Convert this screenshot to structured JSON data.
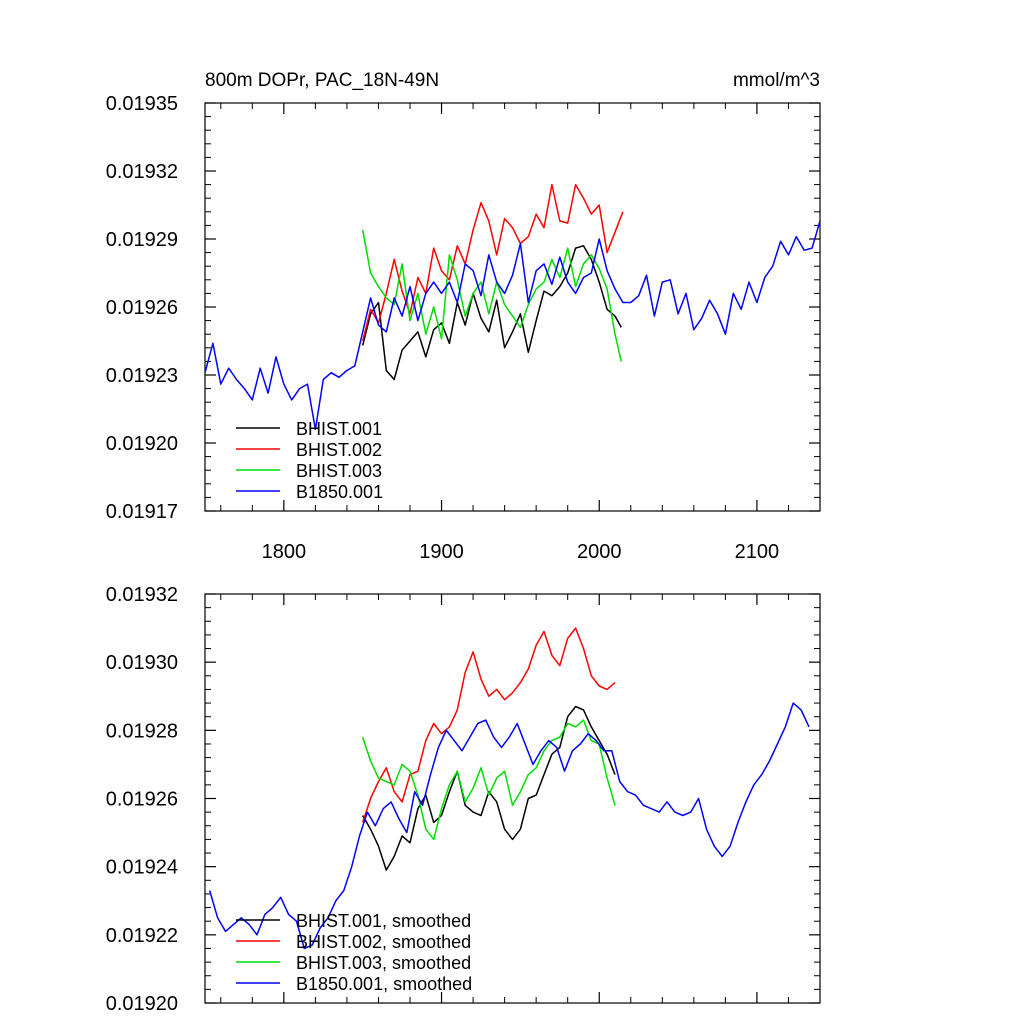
{
  "chart_data": [
    {
      "type": "line",
      "title": "800m DOPr, PAC_18N-49N",
      "units": "mmol/m^3",
      "xlim": [
        1750,
        2140
      ],
      "ylim": [
        0.01917,
        0.01935
      ],
      "xticks": [
        1800,
        1900,
        2000,
        2100
      ],
      "xtick_labels": [
        "1800",
        "1900",
        "2000",
        "2100"
      ],
      "yticks": [
        0.01917,
        0.0192,
        0.01923,
        0.01926,
        0.01929,
        0.01932,
        0.01935
      ],
      "ytick_labels": [
        "0.01917",
        "0.01920",
        "0.01923",
        "0.01926",
        "0.01929",
        "0.01932",
        "0.01935"
      ],
      "legend_position": "bottom-left",
      "series": [
        {
          "name": "BHIST.001",
          "color": "#000000",
          "x": [
            1850,
            1855,
            1860,
            1865,
            1870,
            1875,
            1880,
            1885,
            1890,
            1895,
            1900,
            1905,
            1910,
            1915,
            1920,
            1925,
            1930,
            1935,
            1940,
            1945,
            1950,
            1955,
            1960,
            1965,
            1970,
            1975,
            1980,
            1985,
            1990,
            1995,
            2000,
            2005,
            2010,
            2014
          ],
          "y": [
            0.019243,
            0.019257,
            0.019262,
            0.019232,
            0.019228,
            0.019241,
            0.019245,
            0.019249,
            0.019238,
            0.01925,
            0.019253,
            0.019244,
            0.019262,
            0.019252,
            0.019266,
            0.019255,
            0.019249,
            0.019263,
            0.019242,
            0.019249,
            0.019257,
            0.01924,
            0.019254,
            0.019267,
            0.019265,
            0.019269,
            0.019275,
            0.019286,
            0.019287,
            0.019281,
            0.019271,
            0.019259,
            0.019256,
            0.019251
          ]
        },
        {
          "name": "BHIST.002",
          "color": "#ff0000",
          "x": [
            1850,
            1855,
            1860,
            1865,
            1870,
            1875,
            1880,
            1885,
            1890,
            1895,
            1900,
            1905,
            1910,
            1915,
            1920,
            1925,
            1930,
            1935,
            1940,
            1945,
            1950,
            1955,
            1960,
            1965,
            1970,
            1975,
            1980,
            1985,
            1990,
            1995,
            2000,
            2005,
            2010,
            2015
          ],
          "y": [
            0.019245,
            0.019259,
            0.019253,
            0.019266,
            0.019281,
            0.019267,
            0.019257,
            0.019273,
            0.019266,
            0.019286,
            0.019276,
            0.019272,
            0.019287,
            0.019279,
            0.019294,
            0.019306,
            0.019298,
            0.019283,
            0.019299,
            0.019295,
            0.019288,
            0.019291,
            0.019301,
            0.019295,
            0.019314,
            0.019298,
            0.019297,
            0.019314,
            0.019308,
            0.019301,
            0.019305,
            0.019284,
            0.019293,
            0.019302
          ]
        },
        {
          "name": "BHIST.003",
          "color": "#00dd00",
          "x": [
            1850,
            1855,
            1860,
            1865,
            1870,
            1875,
            1880,
            1885,
            1890,
            1895,
            1900,
            1905,
            1910,
            1915,
            1920,
            1925,
            1930,
            1935,
            1940,
            1945,
            1950,
            1955,
            1960,
            1965,
            1970,
            1975,
            1980,
            1985,
            1990,
            1995,
            2000,
            2005,
            2010,
            2014
          ],
          "y": [
            0.019294,
            0.019275,
            0.019269,
            0.019264,
            0.019261,
            0.019279,
            0.019254,
            0.019266,
            0.019248,
            0.01926,
            0.019246,
            0.019283,
            0.019272,
            0.019256,
            0.019266,
            0.019271,
            0.019257,
            0.019271,
            0.019261,
            0.019256,
            0.019251,
            0.019261,
            0.019268,
            0.019271,
            0.019281,
            0.019273,
            0.019286,
            0.019269,
            0.019279,
            0.019283,
            0.019277,
            0.019268,
            0.019248,
            0.019236
          ]
        },
        {
          "name": "B1850.001",
          "color": "#0000ff",
          "x": [
            1750,
            1755,
            1760,
            1765,
            1770,
            1775,
            1780,
            1785,
            1790,
            1795,
            1800,
            1805,
            1810,
            1815,
            1820,
            1825,
            1830,
            1835,
            1840,
            1845,
            1850,
            1855,
            1860,
            1865,
            1870,
            1875,
            1880,
            1885,
            1890,
            1895,
            1900,
            1905,
            1910,
            1915,
            1920,
            1925,
            1930,
            1935,
            1940,
            1945,
            1950,
            1955,
            1960,
            1965,
            1970,
            1975,
            1980,
            1985,
            1990,
            1995,
            2000,
            2005,
            2010,
            2015,
            2020,
            2025,
            2030,
            2035,
            2040,
            2045,
            2050,
            2055,
            2060,
            2065,
            2070,
            2075,
            2080,
            2085,
            2090,
            2095,
            2100,
            2105,
            2110,
            2115,
            2120,
            2125,
            2130,
            2135,
            2140
          ],
          "y": [
            0.019231,
            0.019244,
            0.019226,
            0.019233,
            0.019228,
            0.019224,
            0.019219,
            0.019233,
            0.019222,
            0.019238,
            0.019226,
            0.019219,
            0.019224,
            0.019226,
            0.019206,
            0.019228,
            0.019231,
            0.019229,
            0.019232,
            0.019234,
            0.019249,
            0.019264,
            0.019252,
            0.019249,
            0.019264,
            0.019256,
            0.019269,
            0.019254,
            0.019266,
            0.019271,
            0.019266,
            0.019271,
            0.019262,
            0.019279,
            0.019276,
            0.019265,
            0.019283,
            0.019271,
            0.019266,
            0.019274,
            0.019288,
            0.019262,
            0.019276,
            0.019279,
            0.01927,
            0.019282,
            0.019271,
            0.019266,
            0.019273,
            0.019275,
            0.01929,
            0.019276,
            0.019268,
            0.019262,
            0.019262,
            0.019265,
            0.019274,
            0.019256,
            0.019271,
            0.019272,
            0.019257,
            0.019266,
            0.01925,
            0.019255,
            0.019263,
            0.019257,
            0.019248,
            0.019266,
            0.019259,
            0.019271,
            0.019262,
            0.019273,
            0.019278,
            0.019289,
            0.019283,
            0.019291,
            0.019285,
            0.019286,
            0.019298
          ]
        }
      ]
    },
    {
      "type": "line",
      "xlim": [
        1750,
        2140
      ],
      "ylim": [
        0.0192,
        0.01932
      ],
      "xticks": [
        1800,
        1900,
        2000,
        2100
      ],
      "yticks": [
        0.0192,
        0.01922,
        0.01924,
        0.01926,
        0.01928,
        0.0193,
        0.01932
      ],
      "ytick_labels": [
        "0.01920",
        "0.01922",
        "0.01924",
        "0.01926",
        "0.01928",
        "0.01930",
        "0.01932"
      ],
      "legend_position": "bottom-left",
      "series": [
        {
          "name": "BHIST.001, smoothed",
          "color": "#000000",
          "x": [
            1850,
            1855,
            1860,
            1865,
            1870,
            1875,
            1880,
            1885,
            1890,
            1895,
            1900,
            1905,
            1910,
            1915,
            1920,
            1925,
            1930,
            1935,
            1940,
            1945,
            1950,
            1955,
            1960,
            1965,
            1970,
            1975,
            1980,
            1985,
            1990,
            1995,
            2000,
            2005,
            2010
          ],
          "y": [
            0.019255,
            0.019251,
            0.019246,
            0.019239,
            0.019243,
            0.019249,
            0.019247,
            0.019257,
            0.019261,
            0.019253,
            0.019255,
            0.019262,
            0.019268,
            0.019258,
            0.019256,
            0.019255,
            0.019262,
            0.019259,
            0.019251,
            0.019248,
            0.019251,
            0.01926,
            0.019261,
            0.019267,
            0.019273,
            0.019275,
            0.019284,
            0.019287,
            0.019286,
            0.019281,
            0.019277,
            0.019273,
            0.019267
          ]
        },
        {
          "name": "BHIST.002, smoothed",
          "color": "#ff0000",
          "x": [
            1850,
            1855,
            1860,
            1865,
            1870,
            1875,
            1880,
            1885,
            1890,
            1895,
            1900,
            1905,
            1910,
            1915,
            1920,
            1925,
            1930,
            1935,
            1940,
            1945,
            1950,
            1955,
            1960,
            1965,
            1970,
            1975,
            1980,
            1985,
            1990,
            1995,
            2000,
            2005,
            2010
          ],
          "y": [
            0.019253,
            0.01926,
            0.019265,
            0.019269,
            0.019262,
            0.019259,
            0.019267,
            0.019268,
            0.019277,
            0.019282,
            0.019279,
            0.019281,
            0.019286,
            0.019297,
            0.019303,
            0.019295,
            0.01929,
            0.019292,
            0.019289,
            0.019291,
            0.019294,
            0.019298,
            0.019305,
            0.019309,
            0.019302,
            0.019299,
            0.019307,
            0.01931,
            0.019304,
            0.019296,
            0.019293,
            0.019292,
            0.019294
          ]
        },
        {
          "name": "BHIST.003, smoothed",
          "color": "#00dd00",
          "x": [
            1850,
            1855,
            1860,
            1865,
            1870,
            1875,
            1880,
            1885,
            1890,
            1895,
            1900,
            1905,
            1910,
            1915,
            1920,
            1925,
            1930,
            1935,
            1940,
            1945,
            1950,
            1955,
            1960,
            1965,
            1970,
            1975,
            1980,
            1985,
            1990,
            1995,
            2000,
            2005,
            2010
          ],
          "y": [
            0.019278,
            0.019271,
            0.019266,
            0.019265,
            0.019264,
            0.01927,
            0.019268,
            0.019261,
            0.019251,
            0.019248,
            0.019257,
            0.019264,
            0.019268,
            0.019259,
            0.019263,
            0.019269,
            0.019261,
            0.019266,
            0.019268,
            0.019258,
            0.019262,
            0.019267,
            0.019269,
            0.019274,
            0.019277,
            0.019278,
            0.019282,
            0.019281,
            0.019283,
            0.019277,
            0.019276,
            0.019266,
            0.019258
          ]
        },
        {
          "name": "B1850.001, smoothed",
          "color": "#0000ff",
          "x": [
            1753,
            1758,
            1763,
            1768,
            1773,
            1778,
            1783,
            1788,
            1793,
            1798,
            1803,
            1808,
            1813,
            1818,
            1823,
            1828,
            1833,
            1838,
            1843,
            1848,
            1853,
            1858,
            1863,
            1868,
            1873,
            1878,
            1883,
            1888,
            1893,
            1898,
            1903,
            1908,
            1913,
            1918,
            1923,
            1928,
            1933,
            1938,
            1943,
            1948,
            1953,
            1958,
            1963,
            1968,
            1973,
            1978,
            1983,
            1988,
            1993,
            1998,
            2003,
            2008,
            2013,
            2018,
            2023,
            2028,
            2033,
            2038,
            2043,
            2048,
            2053,
            2058,
            2063,
            2068,
            2073,
            2078,
            2083,
            2088,
            2093,
            2098,
            2103,
            2108,
            2113,
            2118,
            2123,
            2128,
            2133
          ],
          "y": [
            0.019233,
            0.019225,
            0.019221,
            0.019223,
            0.019225,
            0.019223,
            0.01922,
            0.019226,
            0.019228,
            0.019231,
            0.019226,
            0.019224,
            0.019216,
            0.019217,
            0.019222,
            0.019225,
            0.01923,
            0.019233,
            0.01924,
            0.019249,
            0.019256,
            0.019252,
            0.019257,
            0.019259,
            0.019254,
            0.01925,
            0.019262,
            0.019258,
            0.019267,
            0.019275,
            0.01928,
            0.019277,
            0.019274,
            0.019278,
            0.019282,
            0.019283,
            0.019278,
            0.019275,
            0.019278,
            0.019282,
            0.019276,
            0.01927,
            0.019274,
            0.019277,
            0.019275,
            0.019268,
            0.019274,
            0.019276,
            0.019279,
            0.019277,
            0.019274,
            0.019274,
            0.019265,
            0.019262,
            0.019261,
            0.019258,
            0.019257,
            0.019256,
            0.019259,
            0.019256,
            0.019255,
            0.019256,
            0.01926,
            0.019251,
            0.019246,
            0.019243,
            0.019246,
            0.019253,
            0.019259,
            0.019264,
            0.019267,
            0.019271,
            0.019276,
            0.019281,
            0.019288,
            0.019286,
            0.019281
          ]
        }
      ]
    }
  ]
}
